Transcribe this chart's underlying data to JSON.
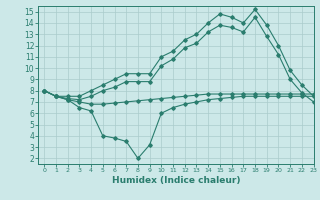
{
  "line1_x": [
    0,
    1,
    2,
    3,
    4,
    5,
    6,
    7,
    8,
    9,
    10,
    11,
    12,
    13,
    14,
    15,
    16,
    17,
    18,
    19,
    20,
    21,
    22,
    23
  ],
  "line1_y": [
    8.0,
    7.5,
    7.5,
    7.5,
    8.0,
    8.5,
    9.0,
    9.5,
    9.5,
    9.5,
    11.0,
    11.5,
    12.5,
    13.0,
    14.0,
    14.8,
    14.5,
    14.0,
    15.2,
    13.8,
    12.0,
    9.8,
    8.5,
    7.5
  ],
  "line2_x": [
    0,
    1,
    2,
    3,
    4,
    5,
    6,
    7,
    8,
    9,
    10,
    11,
    12,
    13,
    14,
    15,
    16,
    17,
    18,
    19,
    20,
    21,
    22,
    23
  ],
  "line2_y": [
    8.0,
    7.5,
    7.3,
    7.2,
    7.5,
    8.0,
    8.3,
    8.8,
    8.8,
    8.8,
    10.2,
    10.8,
    11.8,
    12.2,
    13.2,
    13.8,
    13.6,
    13.2,
    14.5,
    12.8,
    11.2,
    9.0,
    7.8,
    7.0
  ],
  "line3_x": [
    0,
    1,
    2,
    3,
    4,
    5,
    6,
    7,
    8,
    9,
    10,
    11,
    12,
    13,
    14,
    15,
    16,
    17,
    18,
    19,
    20,
    21,
    22,
    23
  ],
  "line3_y": [
    8.0,
    7.5,
    7.2,
    7.0,
    6.8,
    6.8,
    6.9,
    7.0,
    7.1,
    7.2,
    7.3,
    7.4,
    7.5,
    7.6,
    7.7,
    7.7,
    7.7,
    7.7,
    7.7,
    7.7,
    7.7,
    7.7,
    7.7,
    7.7
  ],
  "line4_x": [
    0,
    1,
    2,
    3,
    4,
    5,
    6,
    7,
    8,
    9,
    10,
    11,
    12,
    13,
    14,
    15,
    16,
    17,
    18,
    19,
    20,
    21,
    22,
    23
  ],
  "line4_y": [
    8.0,
    7.5,
    7.2,
    6.5,
    6.2,
    4.0,
    3.8,
    3.5,
    2.0,
    3.2,
    6.0,
    6.5,
    6.8,
    7.0,
    7.2,
    7.3,
    7.4,
    7.5,
    7.5,
    7.5,
    7.5,
    7.5,
    7.5,
    7.5
  ],
  "line_color": "#2a7d6e",
  "bg_color": "#cce8e8",
  "grid_color": "#aacccc",
  "xlabel": "Humidex (Indice chaleur)",
  "xlim": [
    -0.5,
    23
  ],
  "ylim": [
    1.5,
    15.5
  ],
  "xticks": [
    0,
    1,
    2,
    3,
    4,
    5,
    6,
    7,
    8,
    9,
    10,
    11,
    12,
    13,
    14,
    15,
    16,
    17,
    18,
    19,
    20,
    21,
    22,
    23
  ],
  "yticks": [
    2,
    3,
    4,
    5,
    6,
    7,
    8,
    9,
    10,
    11,
    12,
    13,
    14,
    15
  ]
}
